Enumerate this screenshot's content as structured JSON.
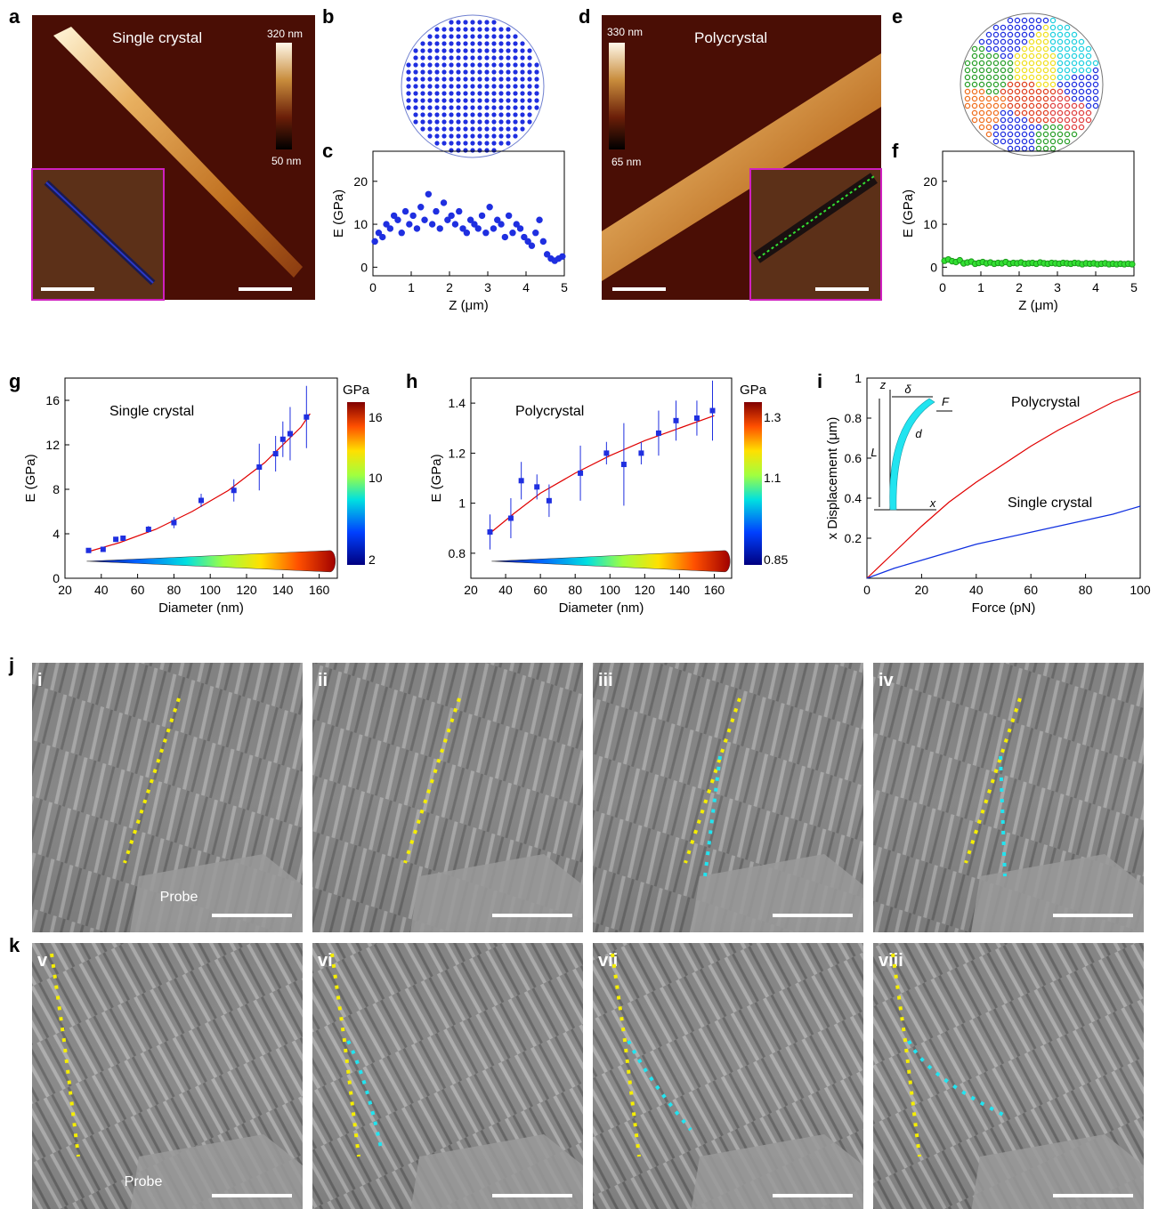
{
  "panel_letters": {
    "a": "a",
    "b": "b",
    "c": "c",
    "d": "d",
    "e": "e",
    "f": "f",
    "g": "g",
    "h": "h",
    "i": "i",
    "j": "j",
    "k": "k"
  },
  "afm": {
    "a": {
      "title": "Single crystal",
      "cb_max": "320 nm",
      "cb_min": "50 nm"
    },
    "d": {
      "title": "Polycrystal",
      "cb_max": "330 nm",
      "cb_min": "65 nm"
    }
  },
  "colors": {
    "blue_marker": "#1f2fe0",
    "green_marker": "#33e033",
    "fit_line": "#e00000",
    "inset_border": "#d020c0",
    "path_yellow": "#f5ee00",
    "path_cyan": "#22e4f0",
    "afm_bg": "#4a0e05"
  },
  "chart_data": [
    {
      "id": "c",
      "type": "scatter",
      "xlabel": "Z (μm)",
      "ylabel": "E (GPa)",
      "xlim": [
        0,
        5
      ],
      "ylim": [
        -2,
        27
      ],
      "xticks": [
        0,
        1,
        2,
        3,
        4,
        5
      ],
      "yticks": [
        0,
        10,
        20
      ],
      "x": [
        0.05,
        0.15,
        0.25,
        0.35,
        0.45,
        0.55,
        0.65,
        0.75,
        0.85,
        0.95,
        1.05,
        1.15,
        1.25,
        1.35,
        1.45,
        1.55,
        1.65,
        1.75,
        1.85,
        1.95,
        2.05,
        2.15,
        2.25,
        2.35,
        2.45,
        2.55,
        2.65,
        2.75,
        2.85,
        2.95,
        3.05,
        3.15,
        3.25,
        3.35,
        3.45,
        3.55,
        3.65,
        3.75,
        3.85,
        3.95,
        4.05,
        4.15,
        4.25,
        4.35,
        4.45,
        4.55,
        4.65,
        4.75,
        4.85,
        4.95
      ],
      "y": [
        6,
        8,
        7,
        10,
        9,
        12,
        11,
        8,
        13,
        10,
        12,
        9,
        14,
        11,
        17,
        10,
        13,
        9,
        15,
        11,
        12,
        10,
        13,
        9,
        8,
        11,
        10,
        9,
        12,
        8,
        14,
        9,
        11,
        10,
        7,
        12,
        8,
        10,
        9,
        7,
        6,
        5,
        8,
        11,
        6,
        3,
        2,
        1.5,
        2,
        2.5
      ]
    },
    {
      "id": "f",
      "type": "scatter",
      "xlabel": "Z (μm)",
      "ylabel": "E (GPa)",
      "xlim": [
        0,
        5
      ],
      "ylim": [
        -2,
        27
      ],
      "xticks": [
        0,
        1,
        2,
        3,
        4,
        5
      ],
      "yticks": [
        0,
        10,
        20
      ],
      "x": [
        0.05,
        0.15,
        0.25,
        0.35,
        0.45,
        0.55,
        0.65,
        0.75,
        0.85,
        0.95,
        1.05,
        1.15,
        1.25,
        1.35,
        1.45,
        1.55,
        1.65,
        1.75,
        1.85,
        1.95,
        2.05,
        2.15,
        2.25,
        2.35,
        2.45,
        2.55,
        2.65,
        2.75,
        2.85,
        2.95,
        3.05,
        3.15,
        3.25,
        3.35,
        3.45,
        3.55,
        3.65,
        3.75,
        3.85,
        3.95,
        4.05,
        4.15,
        4.25,
        4.35,
        4.45,
        4.55,
        4.65,
        4.75,
        4.85,
        4.95
      ],
      "y": [
        1.5,
        1.8,
        1.4,
        1.2,
        1.6,
        0.9,
        1.1,
        1.3,
        0.8,
        1.0,
        1.2,
        0.9,
        1.1,
        0.8,
        1.0,
        0.9,
        1.2,
        0.8,
        1.0,
        0.9,
        1.1,
        0.8,
        0.9,
        1.0,
        0.8,
        1.1,
        0.9,
        0.8,
        1.0,
        0.9,
        0.8,
        1.0,
        0.9,
        0.8,
        1.0,
        0.9,
        0.7,
        0.9,
        0.8,
        0.9,
        0.7,
        0.8,
        0.9,
        0.7,
        0.8,
        0.7,
        0.8,
        0.7,
        0.8,
        0.7
      ]
    },
    {
      "id": "g",
      "type": "scatter",
      "annotation": "Single crystal",
      "xlabel": "Diameter (nm)",
      "ylabel": "E (GPa)",
      "xlim": [
        20,
        170
      ],
      "ylim": [
        0,
        18
      ],
      "xticks": [
        20,
        40,
        60,
        80,
        100,
        120,
        140,
        160
      ],
      "yticks": [
        0,
        4,
        8,
        12,
        16
      ],
      "x": [
        33,
        41,
        48,
        52,
        66,
        80,
        95,
        113,
        127,
        136,
        140,
        144,
        153
      ],
      "y": [
        2.5,
        2.6,
        3.5,
        3.6,
        4.4,
        5.0,
        7.0,
        7.9,
        10.0,
        11.2,
        12.5,
        13.0,
        14.5
      ],
      "err": [
        0.2,
        0.2,
        0.2,
        0.2,
        0.3,
        0.5,
        0.6,
        1.0,
        2.1,
        1.6,
        1.6,
        2.4,
        2.8
      ],
      "fit": {
        "x": [
          33,
          50,
          70,
          90,
          110,
          130,
          150,
          155
        ],
        "y": [
          2.4,
          3.2,
          4.4,
          6.0,
          7.9,
          10.4,
          13.6,
          14.8
        ]
      },
      "colorbar": {
        "unit": "GPa",
        "ticks": [
          "16",
          "10",
          "2"
        ]
      }
    },
    {
      "id": "h",
      "type": "scatter",
      "annotation": "Polycrystal",
      "xlabel": "Diameter (nm)",
      "ylabel": "E (GPa)",
      "xlim": [
        20,
        170
      ],
      "ylim": [
        0.7,
        1.5
      ],
      "xticks": [
        20,
        40,
        60,
        80,
        100,
        120,
        140,
        160
      ],
      "yticks": [
        0.8,
        1.0,
        1.2,
        1.4
      ],
      "x": [
        31,
        43,
        49,
        58,
        65,
        83,
        98,
        108,
        118,
        128,
        138,
        150,
        159
      ],
      "y": [
        0.885,
        0.94,
        1.09,
        1.065,
        1.01,
        1.12,
        1.2,
        1.155,
        1.2,
        1.28,
        1.33,
        1.34,
        1.37
      ],
      "err": [
        0.07,
        0.08,
        0.075,
        0.05,
        0.065,
        0.11,
        0.045,
        0.165,
        0.045,
        0.09,
        0.08,
        0.07,
        0.12
      ],
      "fit": {
        "x": [
          31,
          45,
          60,
          80,
          100,
          120,
          140,
          160
        ],
        "y": [
          0.88,
          0.96,
          1.04,
          1.12,
          1.19,
          1.25,
          1.3,
          1.35
        ]
      },
      "colorbar": {
        "unit": "GPa",
        "ticks": [
          "1.3",
          "1.1",
          "0.85"
        ]
      }
    },
    {
      "id": "i",
      "type": "line",
      "xlabel": "Force (pN)",
      "ylabel": "x Displacement (μm)",
      "xlim": [
        0,
        100
      ],
      "ylim": [
        0,
        1.0
      ],
      "xticks": [
        0,
        20,
        40,
        60,
        80,
        100
      ],
      "yticks": [
        0.2,
        0.4,
        0.6,
        0.8,
        1.0
      ],
      "series": [
        {
          "name": "Polycrystal",
          "color": "#e00000",
          "x": [
            0,
            10,
            20,
            30,
            40,
            50,
            60,
            70,
            80,
            90,
            100
          ],
          "y": [
            0,
            0.13,
            0.26,
            0.38,
            0.48,
            0.57,
            0.66,
            0.74,
            0.81,
            0.88,
            0.935
          ]
        },
        {
          "name": "Single crystal",
          "color": "#1030e0",
          "x": [
            0,
            10,
            20,
            30,
            40,
            50,
            60,
            70,
            80,
            90,
            100
          ],
          "y": [
            0,
            0.05,
            0.09,
            0.13,
            0.17,
            0.2,
            0.23,
            0.26,
            0.29,
            0.32,
            0.36
          ]
        }
      ],
      "inset_labels": {
        "z": "z",
        "x": "x",
        "delta": "δ",
        "F": "F",
        "L": "L",
        "d": "d"
      }
    }
  ],
  "sem": {
    "probe_label": "Probe",
    "j_labels": [
      "i",
      "ii",
      "iii",
      "iv"
    ],
    "k_labels": [
      "v",
      "vi",
      "vii",
      "viii"
    ]
  }
}
